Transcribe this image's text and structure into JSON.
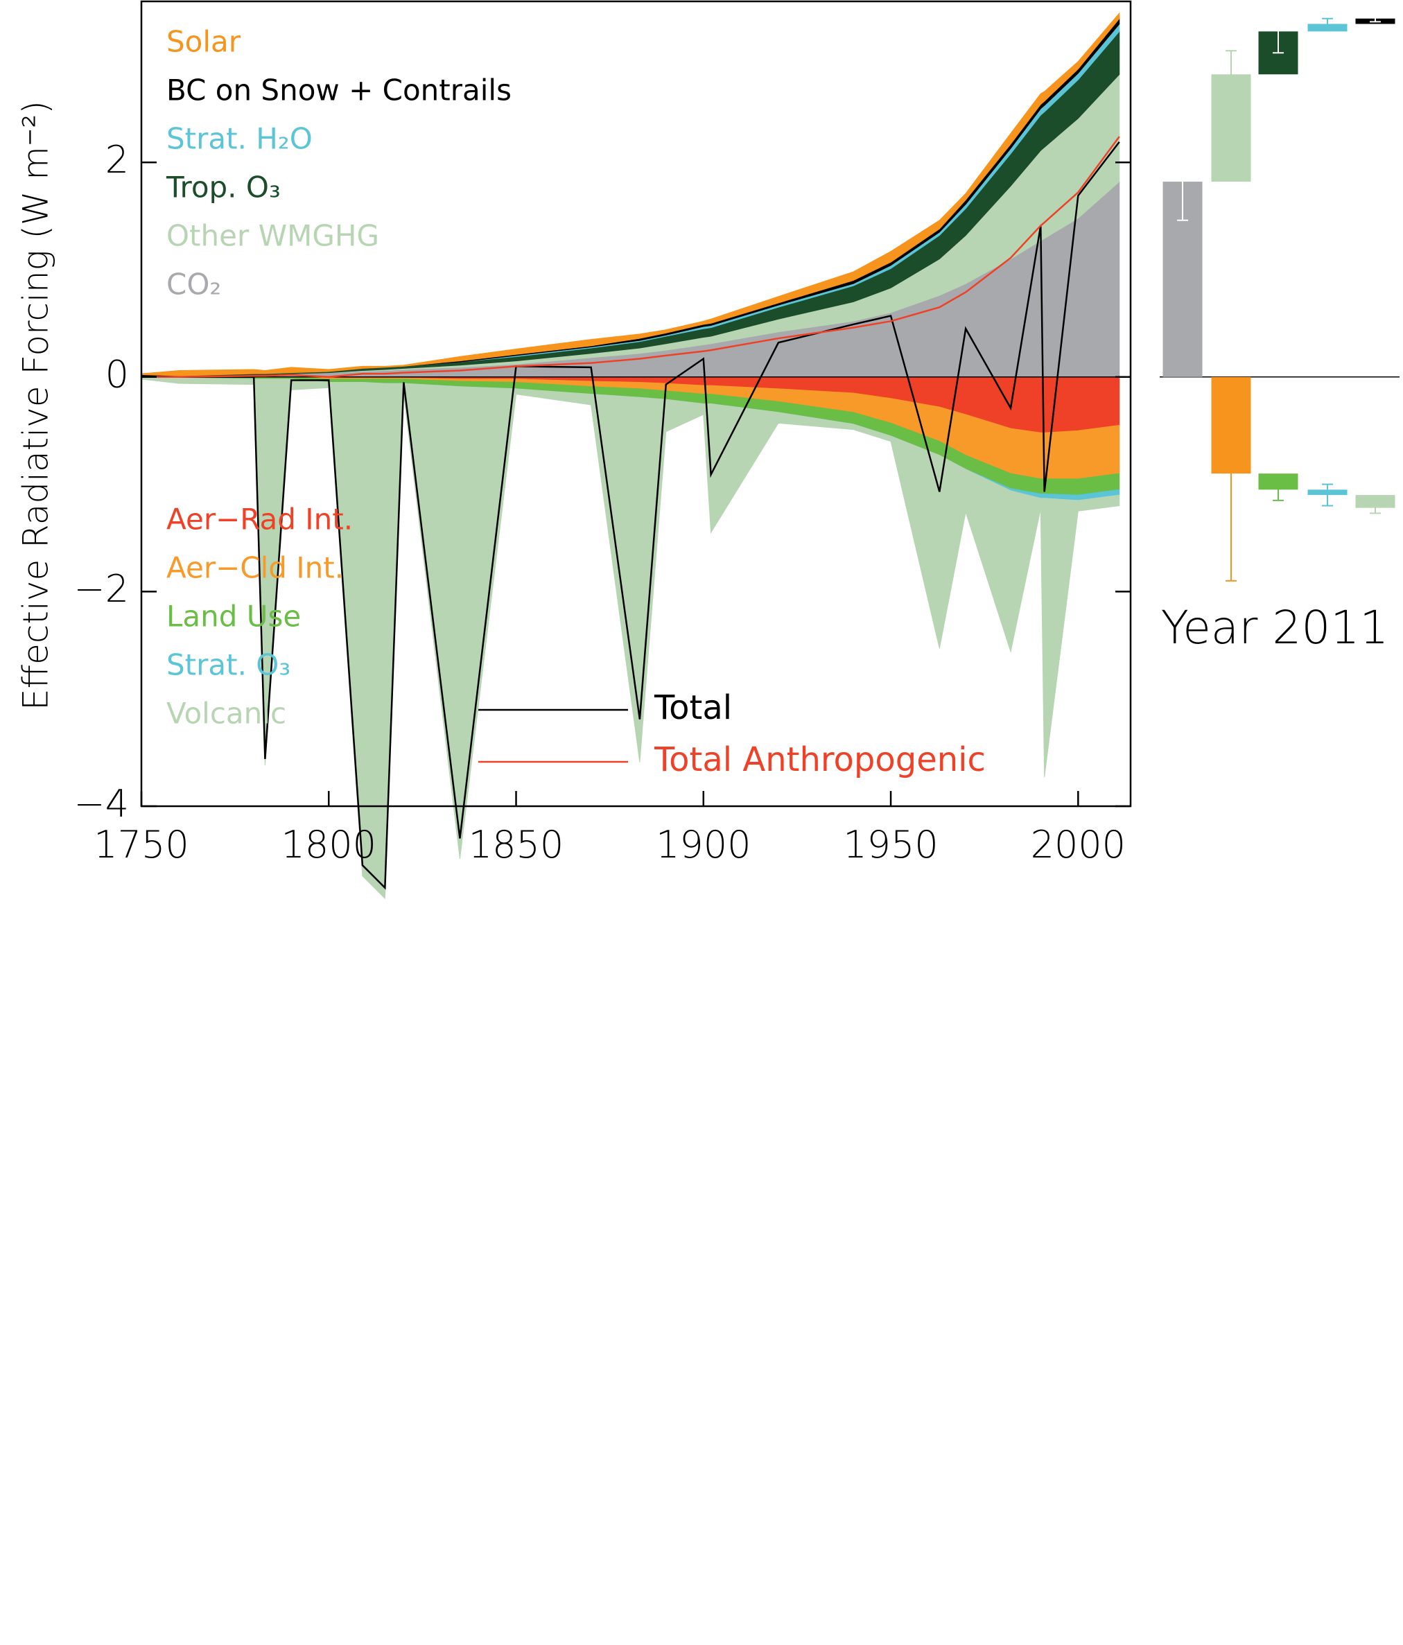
{
  "chart_data": [
    {
      "type": "stacked_area",
      "ylabel": "Effective Radiative Forcing (W m⁻²)",
      "x": [
        1750,
        1760,
        1780,
        1783,
        1790,
        1800,
        1809,
        1815,
        1820,
        1835,
        1850,
        1870,
        1883,
        1890,
        1900,
        1902,
        1920,
        1940,
        1950,
        1963,
        1970,
        1982,
        1990,
        1991,
        2000,
        2011
      ],
      "xlim": [
        1750,
        2014
      ],
      "xticks": [
        1750,
        1800,
        1850,
        1900,
        1950,
        2000
      ],
      "ylim": [
        -4,
        3.5
      ],
      "yticks": [
        {
          "value": -4,
          "label": "−4"
        },
        {
          "value": -2,
          "label": "−2"
        },
        0,
        2
      ],
      "series": [
        {
          "name": "CO₂",
          "color": "#a7a9ac",
          "stack": "positive",
          "values": [
            0,
            0.01,
            0.02,
            0.02,
            0.03,
            0.04,
            0.05,
            0.06,
            0.07,
            0.09,
            0.12,
            0.18,
            0.22,
            0.25,
            0.3,
            0.31,
            0.42,
            0.52,
            0.6,
            0.76,
            0.87,
            1.1,
            1.27,
            1.29,
            1.48,
            1.82
          ]
        },
        {
          "name": "Other WMGHG",
          "color": "#b7d5b3",
          "stack": "positive",
          "values": [
            0,
            0,
            0,
            0,
            0,
            0,
            0.01,
            0.01,
            0.01,
            0.02,
            0.03,
            0.04,
            0.05,
            0.06,
            0.07,
            0.07,
            0.12,
            0.18,
            0.23,
            0.34,
            0.45,
            0.68,
            0.84,
            0.85,
            0.93,
            1.0
          ]
        },
        {
          "name": "Trop. O₃",
          "color": "#1b4d2a",
          "stack": "positive",
          "values": [
            0,
            0,
            0.01,
            0.01,
            0.01,
            0.01,
            0.02,
            0.02,
            0.02,
            0.03,
            0.04,
            0.05,
            0.06,
            0.07,
            0.08,
            0.08,
            0.11,
            0.15,
            0.18,
            0.22,
            0.25,
            0.3,
            0.33,
            0.33,
            0.36,
            0.4
          ]
        },
        {
          "name": "Strat. H₂O",
          "color": "#5bc4d6",
          "stack": "positive",
          "values": [
            0,
            0,
            0,
            0,
            0,
            0,
            0,
            0,
            0,
            0,
            0.01,
            0.01,
            0.01,
            0.01,
            0.02,
            0.02,
            0.02,
            0.02,
            0.03,
            0.03,
            0.04,
            0.05,
            0.06,
            0.06,
            0.06,
            0.07
          ]
        },
        {
          "name": "BC on Snow + Contrails",
          "color": "#000000",
          "stack": "positive",
          "values": [
            0,
            0,
            0,
            0,
            0,
            0,
            0,
            0,
            0,
            0.01,
            0.01,
            0.01,
            0.02,
            0.02,
            0.02,
            0.02,
            0.02,
            0.03,
            0.03,
            0.03,
            0.04,
            0.04,
            0.04,
            0.04,
            0.04,
            0.05
          ]
        },
        {
          "name": "Solar",
          "color": "#f7941d",
          "stack": "positive",
          "values": [
            0.03,
            0.05,
            0.04,
            0.03,
            0.05,
            0.02,
            0.02,
            0.01,
            0.01,
            0.04,
            0.05,
            0.06,
            0.04,
            0.03,
            0.03,
            0.04,
            0.06,
            0.08,
            0.1,
            0.08,
            0.06,
            0.1,
            0.1,
            0.09,
            0.07,
            0.05
          ]
        },
        {
          "name": "Aer−Rad Int.",
          "color": "#ee4127",
          "stack": "negative",
          "values": [
            0,
            0,
            0,
            0,
            0,
            -0.01,
            -0.01,
            -0.01,
            -0.01,
            -0.02,
            -0.02,
            -0.04,
            -0.05,
            -0.06,
            -0.08,
            -0.08,
            -0.11,
            -0.15,
            -0.2,
            -0.28,
            -0.35,
            -0.48,
            -0.52,
            -0.52,
            -0.5,
            -0.45
          ]
        },
        {
          "name": "Aer−Cld Int.",
          "color": "#f89a2a",
          "stack": "negative",
          "values": [
            0,
            0,
            0,
            0,
            0,
            -0.01,
            -0.01,
            -0.01,
            -0.01,
            -0.02,
            -0.03,
            -0.05,
            -0.06,
            -0.07,
            -0.08,
            -0.08,
            -0.12,
            -0.18,
            -0.23,
            -0.32,
            -0.38,
            -0.42,
            -0.43,
            -0.43,
            -0.45,
            -0.45
          ]
        },
        {
          "name": "Land Use",
          "color": "#6abd45",
          "stack": "negative",
          "values": [
            0,
            -0.01,
            -0.02,
            -0.02,
            -0.02,
            -0.03,
            -0.03,
            -0.04,
            -0.04,
            -0.05,
            -0.06,
            -0.07,
            -0.08,
            -0.08,
            -0.09,
            -0.09,
            -0.1,
            -0.11,
            -0.12,
            -0.13,
            -0.13,
            -0.14,
            -0.14,
            -0.14,
            -0.15,
            -0.15
          ]
        },
        {
          "name": "Strat. O₃",
          "color": "#5bc4d6",
          "stack": "negative",
          "values": [
            0,
            0,
            0,
            0,
            0,
            0,
            0,
            0,
            0,
            0,
            0,
            0,
            0,
            0,
            0,
            0,
            0,
            0,
            0,
            0,
            0,
            -0.02,
            -0.04,
            -0.04,
            -0.05,
            -0.05
          ]
        },
        {
          "name": "Volcanic",
          "color": "#b7d5b3",
          "stack": "negative",
          "values": [
            -0.02,
            -0.05,
            -0.05,
            -3.6,
            -0.1,
            -0.05,
            -4.6,
            -4.8,
            -0.1,
            -4.4,
            -0.05,
            -0.1,
            -3.4,
            -0.3,
            -0.1,
            -1.2,
            -0.1,
            -0.05,
            -0.05,
            -1.8,
            -0.4,
            -1.5,
            -0.1,
            -2.6,
            -0.1,
            -0.1
          ]
        },
        {
          "name": "Total",
          "color": "#000000",
          "kind": "line",
          "values": [
            0.01,
            0,
            0,
            -3.56,
            -0.03,
            -0.03,
            -4.55,
            -4.76,
            -0.05,
            -4.3,
            0.1,
            0.09,
            -3.19,
            -0.07,
            0.17,
            -0.91,
            0.32,
            0.49,
            0.57,
            -1.07,
            0.45,
            -0.29,
            1.41,
            -1.07,
            1.69,
            2.19
          ]
        },
        {
          "name": "Total Anthropogenic",
          "color": "#ee4127",
          "kind": "line",
          "values": [
            0,
            0,
            0.01,
            0.01,
            0.02,
            0,
            0.03,
            0.03,
            0.04,
            0.06,
            0.1,
            0.13,
            0.17,
            0.2,
            0.24,
            0.25,
            0.36,
            0.46,
            0.52,
            0.65,
            0.79,
            1.11,
            1.41,
            1.44,
            1.72,
            2.24
          ]
        }
      ]
    },
    {
      "type": "waterfall",
      "label": "Year 2011",
      "ylim": [
        -4,
        3.5
      ],
      "values": [
        1.82,
        1.0,
        0.4,
        0.07,
        0.05,
        -0.9,
        -0.15,
        -0.05,
        -0.12
      ],
      "errors": [
        [
          0.36,
          0.36
        ],
        [
          0.2,
          0.22
        ],
        [
          0.2,
          0.22
        ],
        [
          0.05,
          0.05
        ],
        [
          0.03,
          0.04
        ],
        [
          1.0,
          0.8
        ],
        [
          0.1,
          0.1
        ],
        [
          0.1,
          0.1
        ],
        [
          0.05,
          0.05
        ]
      ],
      "colors": [
        "#a7a9ac",
        "#b7d5b3",
        "#1b4d2a",
        "#5bc4d6",
        "#000000",
        "#f7941d",
        "#6abd45",
        "#5bc4d6",
        "#b7d5b3"
      ]
    }
  ]
}
